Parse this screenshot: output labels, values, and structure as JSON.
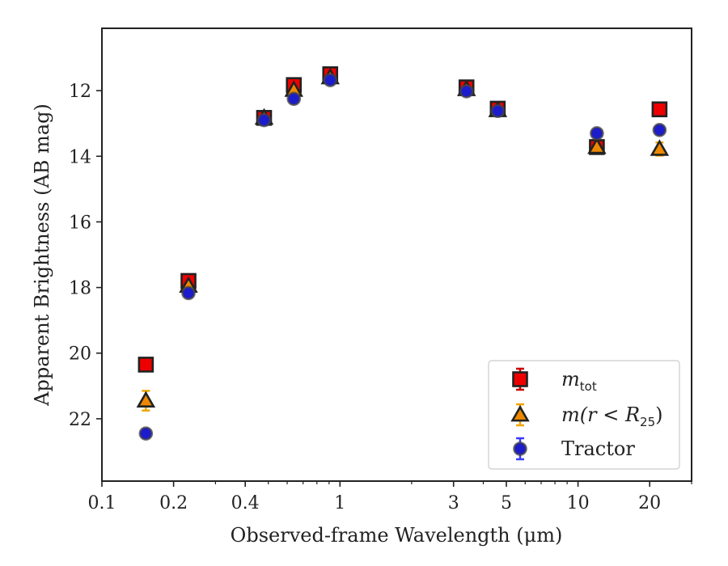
{
  "chart_data": {
    "type": "scatter",
    "xlabel": "Observed-frame Wavelength (μm)",
    "ylabel": "Apparent Brightness (AB mag)",
    "xscale": "log",
    "xlim": [
      0.1,
      30
    ],
    "ylim": [
      23.9,
      10.1
    ],
    "y_inverted": true,
    "xticks": [
      {
        "value": 0.1,
        "label": "0.1"
      },
      {
        "value": 0.2,
        "label": "0.2"
      },
      {
        "value": 0.4,
        "label": "0.4"
      },
      {
        "value": 1,
        "label": "1"
      },
      {
        "value": 3,
        "label": "3"
      },
      {
        "value": 5,
        "label": "5"
      },
      {
        "value": 10,
        "label": "10"
      },
      {
        "value": 20,
        "label": "20"
      }
    ],
    "yticks": [
      {
        "value": 12,
        "label": "12"
      },
      {
        "value": 14,
        "label": "14"
      },
      {
        "value": 16,
        "label": "16"
      },
      {
        "value": 18,
        "label": "18"
      },
      {
        "value": 20,
        "label": "20"
      },
      {
        "value": 22,
        "label": "22"
      }
    ],
    "grid": false,
    "legend_position": "lower-right",
    "series": [
      {
        "legend_math": "m",
        "legend_sub": "tot",
        "marker": "square",
        "color": "#ee0000",
        "errcolor": "#cc0000",
        "points": [
          {
            "x": 0.153,
            "y": 20.35,
            "err": 0.05
          },
          {
            "x": 0.231,
            "y": 17.8,
            "err": 0.05
          },
          {
            "x": 0.48,
            "y": 12.83,
            "err": 0.05
          },
          {
            "x": 0.64,
            "y": 11.83,
            "err": 0.05
          },
          {
            "x": 0.91,
            "y": 11.5,
            "err": 0.05
          },
          {
            "x": 3.4,
            "y": 11.9,
            "err": 0.05
          },
          {
            "x": 4.6,
            "y": 12.55,
            "err": 0.05
          },
          {
            "x": 12.0,
            "y": 13.72,
            "err": 0.05
          },
          {
            "x": 22.0,
            "y": 12.57,
            "err": 0.05
          }
        ]
      },
      {
        "legend_pre": "m(r < R",
        "legend_sub": "25",
        "legend_post": ")",
        "marker": "triangle",
        "color": "#ee8800",
        "errcolor": "#f0a500",
        "points": [
          {
            "x": 0.153,
            "y": 21.45,
            "err": 0.3
          },
          {
            "x": 0.231,
            "y": 17.95,
            "err": 0.05
          },
          {
            "x": 0.48,
            "y": 12.83,
            "err": 0.05
          },
          {
            "x": 0.64,
            "y": 11.98,
            "err": 0.05
          },
          {
            "x": 0.91,
            "y": 11.6,
            "err": 0.05
          },
          {
            "x": 3.4,
            "y": 11.96,
            "err": 0.05
          },
          {
            "x": 4.6,
            "y": 12.6,
            "err": 0.05
          },
          {
            "x": 12.0,
            "y": 13.72,
            "err": 0.05
          },
          {
            "x": 22.0,
            "y": 13.78,
            "err": 0.2
          }
        ]
      },
      {
        "name": "Tractor",
        "marker": "circle",
        "color": "#1c1ccc",
        "errcolor": "#3a3aff",
        "points": [
          {
            "x": 0.153,
            "y": 22.45,
            "err": 0.05
          },
          {
            "x": 0.231,
            "y": 18.17,
            "err": 0.05
          },
          {
            "x": 0.48,
            "y": 12.9,
            "err": 0.05
          },
          {
            "x": 0.64,
            "y": 12.25,
            "err": 0.05
          },
          {
            "x": 0.91,
            "y": 11.68,
            "err": 0.05
          },
          {
            "x": 3.4,
            "y": 12.02,
            "err": 0.05
          },
          {
            "x": 4.6,
            "y": 12.62,
            "err": 0.05
          },
          {
            "x": 12.0,
            "y": 13.3,
            "err": 0.05
          },
          {
            "x": 22.0,
            "y": 13.2,
            "err": 0.05
          }
        ]
      }
    ]
  }
}
